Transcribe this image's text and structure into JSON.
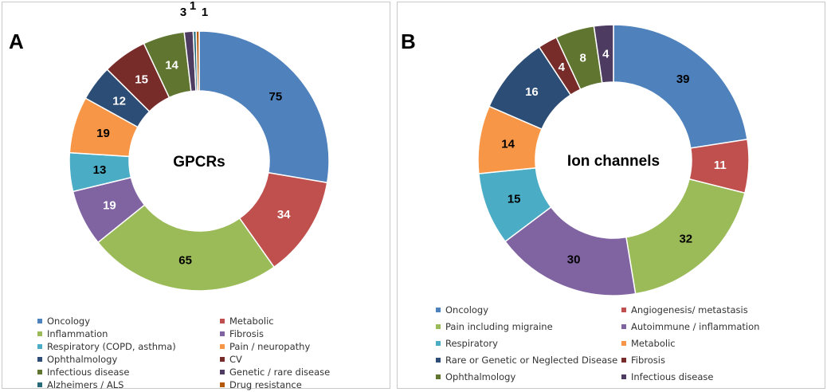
{
  "chart_data": [
    {
      "type": "pie",
      "panel_label": "A",
      "center_label": "GPCRs",
      "categories": [
        "Oncology",
        "Metabolic",
        "Inflammation",
        "Fibrosis",
        "Respiratory (COPD, asthma)",
        "Pain / neuropathy",
        "Ophthalmology",
        "CV",
        "Infectious disease",
        "Genetic / rare disease",
        "Alzheimers / ALS",
        "Drug resistance"
      ],
      "values": [
        75,
        34,
        65,
        19,
        13,
        19,
        12,
        15,
        14,
        3,
        1,
        1
      ],
      "slice_order": [
        0,
        1,
        2,
        3,
        4,
        5,
        6,
        7,
        8,
        9,
        10,
        11
      ],
      "colors": [
        "#4f81bd",
        "#c0504d",
        "#9bbb59",
        "#8064a2",
        "#4bacc6",
        "#f79646",
        "#2c4d75",
        "#772c2a",
        "#5f7530",
        "#4d3b62",
        "#276a7c",
        "#b65708"
      ],
      "legend_placement": "bottom"
    },
    {
      "type": "pie",
      "panel_label": "B",
      "center_label": "Ion channels",
      "categories": [
        "Oncology",
        "Angiogenesis/ metastasis",
        "Pain including migraine",
        "Autoimmune / inflammation",
        "Respiratory",
        "Metabolic",
        "Rare or Genetic or Neglected Disease",
        "Fibrosis",
        "Ophthalmology",
        "Infectious disease"
      ],
      "values": [
        39,
        11,
        32,
        30,
        15,
        14,
        16,
        4,
        8,
        4
      ],
      "slice_order": [
        0,
        1,
        2,
        3,
        4,
        5,
        6,
        7,
        8,
        9
      ],
      "colors": [
        "#4f81bd",
        "#c0504d",
        "#9bbb59",
        "#8064a2",
        "#4bacc6",
        "#f79646",
        "#2c4d75",
        "#772c2a",
        "#5f7530",
        "#4d3b62"
      ],
      "legend_placement": "bottom"
    }
  ]
}
